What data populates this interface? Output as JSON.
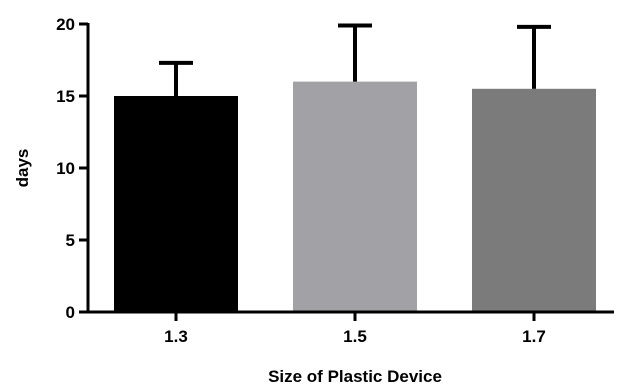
{
  "chart_data": {
    "type": "bar",
    "title": "",
    "xlabel": "Size of Plastic Device",
    "ylabel": "days",
    "categories": [
      "1.3",
      "1.5",
      "1.7"
    ],
    "values": [
      15.0,
      16.0,
      15.5
    ],
    "error_upper": [
      2.3,
      3.9,
      4.3
    ],
    "ylim": [
      0,
      20
    ],
    "yticks": [
      0,
      5,
      10,
      15,
      20
    ],
    "ytick_labels": [
      "0",
      "5",
      "10",
      "15",
      "20"
    ],
    "bar_colors": [
      "#000000",
      "#a2a2a6",
      "#7b7b7b"
    ],
    "grid": false,
    "legend": "none"
  }
}
